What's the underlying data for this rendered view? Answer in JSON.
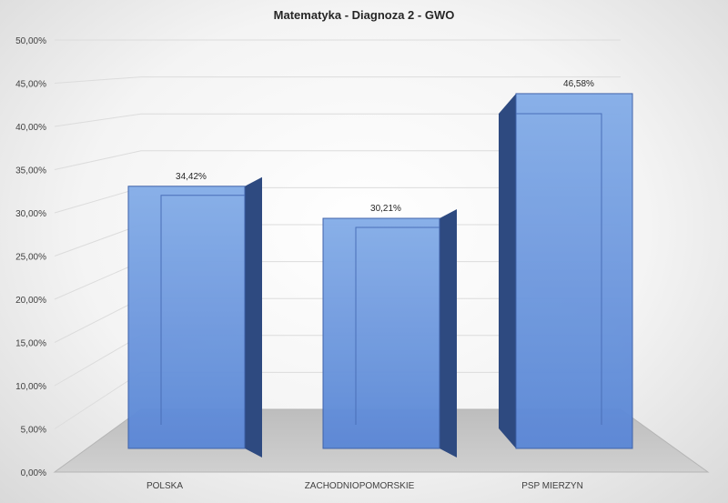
{
  "chart_data": {
    "type": "bar",
    "title": "Matematyka - Diagnoza 2 - GWO",
    "categories": [
      "POLSKA",
      "ZACHODNIOPOMORSKIE",
      "PSP MIERZYN"
    ],
    "values": [
      34.42,
      30.21,
      46.58
    ],
    "data_labels": [
      "34,42%",
      "30,21%",
      "46,58%"
    ],
    "ylim": [
      0,
      50
    ],
    "y_ticks": [
      "0,00%",
      "5,00%",
      "10,00%",
      "15,00%",
      "20,00%",
      "25,00%",
      "30,00%",
      "35,00%",
      "40,00%",
      "45,00%",
      "50,00%"
    ],
    "grid": true,
    "bar_style": "3d",
    "colors": {
      "front": "#5b87d6",
      "side": "#2e4a80",
      "top": "#86aee8",
      "floor": "#c8c8c8"
    }
  }
}
